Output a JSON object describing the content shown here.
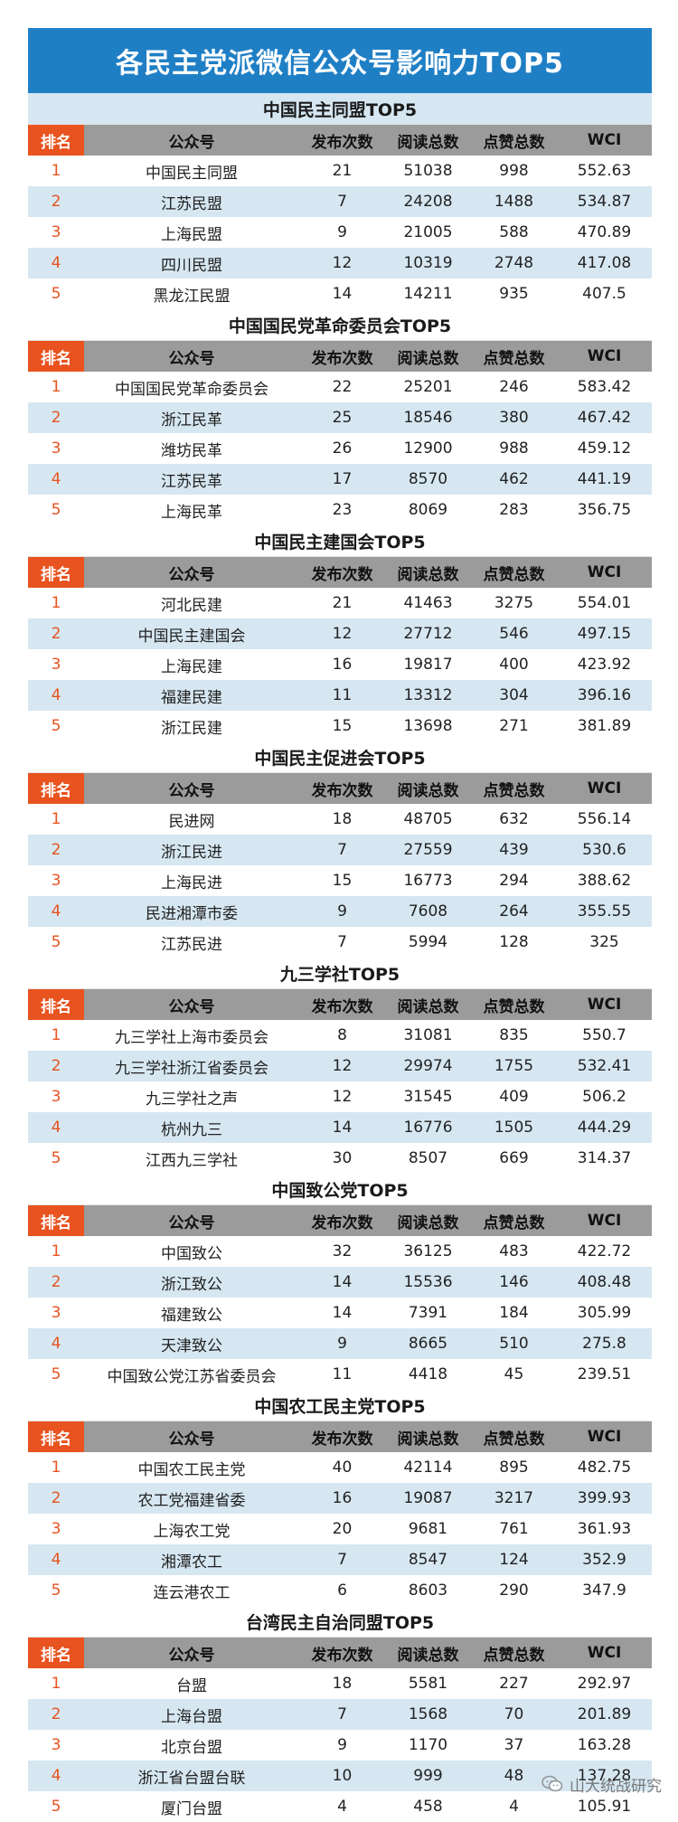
{
  "title": "各民主党派微信公众号影响力TOP5",
  "headers": {
    "rank": "排名",
    "account": "公众号",
    "posts": "发布次数",
    "reads": "阅读总数",
    "likes": "点赞总数",
    "wci": "WCI"
  },
  "sections": [
    {
      "title": "中国民主同盟TOP5",
      "rows": [
        [
          "1",
          "中国民主同盟",
          "21",
          "51038",
          "998",
          "552.63"
        ],
        [
          "2",
          "江苏民盟",
          "7",
          "24208",
          "1488",
          "534.87"
        ],
        [
          "3",
          "上海民盟",
          "9",
          "21005",
          "588",
          "470.89"
        ],
        [
          "4",
          "四川民盟",
          "12",
          "10319",
          "2748",
          "417.08"
        ],
        [
          "5",
          "黑龙江民盟",
          "14",
          "14211",
          "935",
          "407.5"
        ]
      ]
    },
    {
      "title": "中国国民党革命委员会TOP5",
      "rows": [
        [
          "1",
          "中国国民党革命委员会",
          "22",
          "25201",
          "246",
          "583.42"
        ],
        [
          "2",
          "浙江民革",
          "25",
          "18546",
          "380",
          "467.42"
        ],
        [
          "3",
          "潍坊民革",
          "26",
          "12900",
          "988",
          "459.12"
        ],
        [
          "4",
          "江苏民革",
          "17",
          "8570",
          "462",
          "441.19"
        ],
        [
          "5",
          "上海民革",
          "23",
          "8069",
          "283",
          "356.75"
        ]
      ]
    },
    {
      "title": "中国民主建国会TOP5",
      "rows": [
        [
          "1",
          "河北民建",
          "21",
          "41463",
          "3275",
          "554.01"
        ],
        [
          "2",
          "中国民主建国会",
          "12",
          "27712",
          "546",
          "497.15"
        ],
        [
          "3",
          "上海民建",
          "16",
          "19817",
          "400",
          "423.92"
        ],
        [
          "4",
          "福建民建",
          "11",
          "13312",
          "304",
          "396.16"
        ],
        [
          "5",
          "浙江民建",
          "15",
          "13698",
          "271",
          "381.89"
        ]
      ]
    },
    {
      "title": "中国民主促进会TOP5",
      "rows": [
        [
          "1",
          "民进网",
          "18",
          "48705",
          "632",
          "556.14"
        ],
        [
          "2",
          "浙江民进",
          "7",
          "27559",
          "439",
          "530.6"
        ],
        [
          "3",
          "上海民进",
          "15",
          "16773",
          "294",
          "388.62"
        ],
        [
          "4",
          "民进湘潭市委",
          "9",
          "7608",
          "264",
          "355.55"
        ],
        [
          "5",
          "江苏民进",
          "7",
          "5994",
          "128",
          "325"
        ]
      ]
    },
    {
      "title": "九三学社TOP5",
      "rows": [
        [
          "1",
          "九三学社上海市委员会",
          "8",
          "31081",
          "835",
          "550.7"
        ],
        [
          "2",
          "九三学社浙江省委员会",
          "12",
          "29974",
          "1755",
          "532.41"
        ],
        [
          "3",
          "九三学社之声",
          "12",
          "31545",
          "409",
          "506.2"
        ],
        [
          "4",
          "杭州九三",
          "14",
          "16776",
          "1505",
          "444.29"
        ],
        [
          "5",
          "江西九三学社",
          "30",
          "8507",
          "669",
          "314.37"
        ]
      ]
    },
    {
      "title": "中国致公党TOP5",
      "rows": [
        [
          "1",
          "中国致公",
          "32",
          "36125",
          "483",
          "422.72"
        ],
        [
          "2",
          "浙江致公",
          "14",
          "15536",
          "146",
          "408.48"
        ],
        [
          "3",
          "福建致公",
          "14",
          "7391",
          "184",
          "305.99"
        ],
        [
          "4",
          "天津致公",
          "9",
          "8665",
          "510",
          "275.8"
        ],
        [
          "5",
          "中国致公党江苏省委员会",
          "11",
          "4418",
          "45",
          "239.51"
        ]
      ]
    },
    {
      "title": "中国农工民主党TOP5",
      "rows": [
        [
          "1",
          "中国农工民主党",
          "40",
          "42114",
          "895",
          "482.75"
        ],
        [
          "2",
          "农工党福建省委",
          "16",
          "19087",
          "3217",
          "399.93"
        ],
        [
          "3",
          "上海农工党",
          "20",
          "9681",
          "761",
          "361.93"
        ],
        [
          "4",
          "湘潭农工",
          "7",
          "8547",
          "124",
          "352.9"
        ],
        [
          "5",
          "连云港农工",
          "6",
          "8603",
          "290",
          "347.9"
        ]
      ]
    },
    {
      "title": "台湾民主自治同盟TOP5",
      "rows": [
        [
          "1",
          "台盟",
          "18",
          "5581",
          "227",
          "292.97"
        ],
        [
          "2",
          "上海台盟",
          "7",
          "1568",
          "70",
          "201.89"
        ],
        [
          "3",
          "北京台盟",
          "9",
          "1170",
          "37",
          "163.28"
        ],
        [
          "4",
          "浙江省台盟台联",
          "10",
          "999",
          "48",
          "137.28"
        ],
        [
          "5",
          "厦门台盟",
          "4",
          "458",
          "4",
          "105.91"
        ]
      ]
    }
  ],
  "watermark": {
    "text": "山大统战研究",
    "icon": "wechat-icon"
  }
}
